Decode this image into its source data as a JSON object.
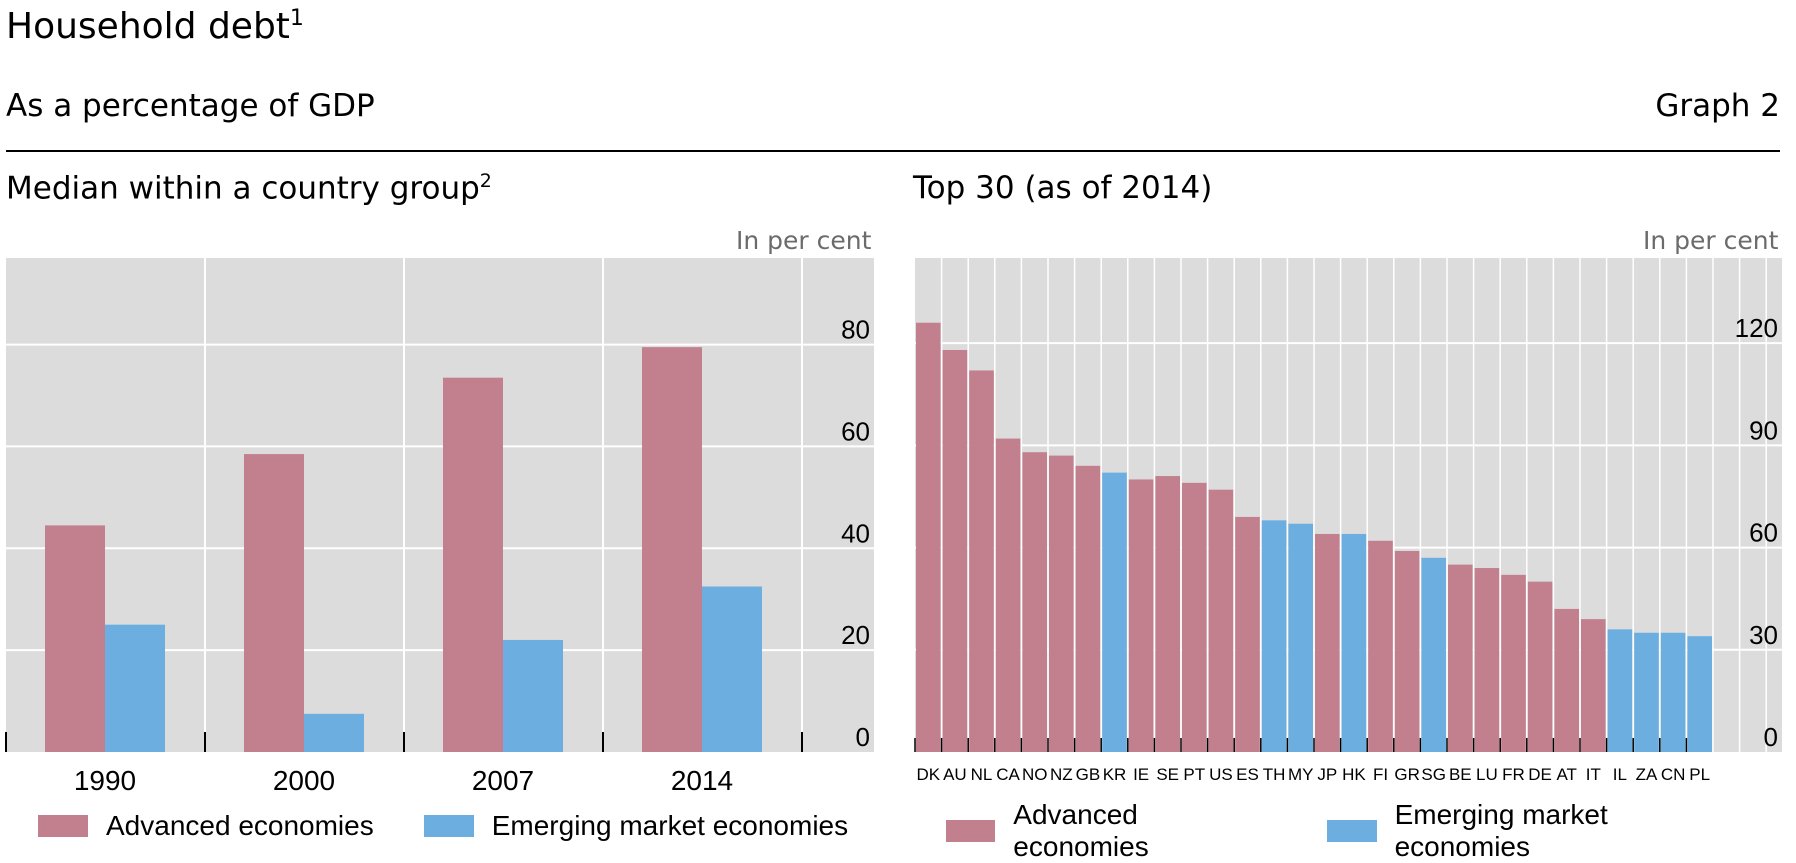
{
  "header": {
    "title": "Household debt",
    "title_sup": "1",
    "subtitle": "As a percentage of GDP",
    "graph_label": "Graph 2"
  },
  "colors": {
    "advanced": "#c2808e",
    "emerging": "#6daee0",
    "plot_bg": "#dcdcdc",
    "grid": "#ffffff"
  },
  "chart_data": [
    {
      "type": "bar",
      "title": "Median within a country group",
      "title_sup": "2",
      "unit_label": "In per cent",
      "categories": [
        "1990",
        "2000",
        "2007",
        "2014"
      ],
      "series": [
        {
          "name": "Advanced economies",
          "values": [
            44.5,
            58.5,
            73.5,
            79.5
          ]
        },
        {
          "name": "Emerging market economies",
          "values": [
            25,
            7.5,
            22,
            32.5
          ]
        }
      ],
      "ylim": [
        0,
        97
      ],
      "yticks": [
        0,
        20,
        40,
        60,
        80
      ],
      "grid": true,
      "legend": {
        "placement": "bottom",
        "entries": [
          "Advanced economies",
          "Emerging market economies"
        ]
      }
    },
    {
      "type": "bar",
      "title": "Top 30 (as of 2014)",
      "unit_label": "In per cent",
      "categories": [
        "DK",
        "AU",
        "NL",
        "CA",
        "NO",
        "NZ",
        "GB",
        "KR",
        "IE",
        "SE",
        "PT",
        "US",
        "ES",
        "TH",
        "MY",
        "JP",
        "HK",
        "FI",
        "GR",
        "SG",
        "BE",
        "LU",
        "FR",
        "DE",
        "AT",
        "IT",
        "IL",
        "ZA",
        "CN",
        "PL"
      ],
      "values": [
        126,
        118,
        112,
        92,
        88,
        87,
        84,
        82,
        80,
        81,
        79,
        77,
        69,
        68,
        67,
        64,
        64,
        62,
        59,
        57,
        55,
        54,
        52,
        50,
        42,
        39,
        36,
        35,
        35,
        34
      ],
      "group": [
        "advanced",
        "advanced",
        "advanced",
        "advanced",
        "advanced",
        "advanced",
        "advanced",
        "emerging",
        "advanced",
        "advanced",
        "advanced",
        "advanced",
        "advanced",
        "emerging",
        "emerging",
        "advanced",
        "emerging",
        "advanced",
        "advanced",
        "emerging",
        "advanced",
        "advanced",
        "advanced",
        "advanced",
        "advanced",
        "advanced",
        "emerging",
        "emerging",
        "emerging",
        "emerging"
      ],
      "ylim": [
        0,
        145
      ],
      "yticks": [
        0,
        30,
        60,
        90,
        120
      ],
      "grid": true,
      "legend": {
        "placement": "bottom",
        "entries": [
          "Advanced economies",
          "Emerging market economies"
        ]
      }
    }
  ]
}
